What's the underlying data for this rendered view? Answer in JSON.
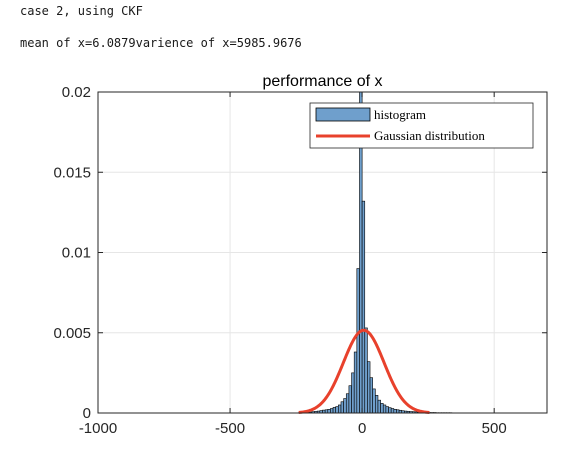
{
  "console": {
    "line1": "case 2, using CKF",
    "line2": "mean of x=6.0879varience of x=5985.9676"
  },
  "colors": {
    "bar_fill": "#6f9fcc",
    "bar_edge": "#000000",
    "curve": "#e8412c",
    "grid": "#e6e6e6",
    "axis": "#262626"
  },
  "chart_data": {
    "type": "bar",
    "title": "performance of x",
    "xlim": [
      -1000,
      700
    ],
    "ylim": [
      0,
      0.02
    ],
    "x_ticks": [
      -1000,
      -500,
      0,
      500
    ],
    "x_tick_labels": [
      "-1000",
      "-500",
      "0",
      "500"
    ],
    "y_ticks": [
      0,
      0.005,
      0.01,
      0.015,
      0.02
    ],
    "y_tick_labels": [
      "0",
      "0.005",
      "0.01",
      "0.015",
      "0.02"
    ],
    "grid": true,
    "legend": {
      "placement": "top-right",
      "entries": [
        "histogram",
        "Gaussian distribution"
      ]
    },
    "histogram": {
      "bin_width": 10,
      "bin_centers": [
        -235,
        -225,
        -215,
        -205,
        -195,
        -185,
        -175,
        -165,
        -155,
        -145,
        -135,
        -125,
        -115,
        -105,
        -95,
        -85,
        -75,
        -65,
        -55,
        -45,
        -35,
        -25,
        -15,
        -5,
        5,
        15,
        25,
        35,
        45,
        55,
        65,
        75,
        85,
        95,
        105,
        115,
        125,
        135,
        145,
        155,
        165,
        175,
        185,
        195,
        205,
        215,
        225,
        235,
        245,
        255,
        265,
        275,
        285,
        295,
        305,
        315,
        325,
        335
      ],
      "densities": [
        3e-05,
        3e-05,
        4e-05,
        5e-05,
        6e-05,
        8e-05,
        0.0001,
        0.00012,
        0.00015,
        0.00018,
        0.0002,
        0.00023,
        0.00028,
        0.00035,
        0.0004,
        0.0005,
        0.0007,
        0.0009,
        0.0012,
        0.0017,
        0.0025,
        0.0038,
        0.009,
        0.0225,
        0.0132,
        0.0053,
        0.0032,
        0.0022,
        0.0015,
        0.0011,
        0.0008,
        0.0006,
        0.0005,
        0.0004,
        0.00033,
        0.00028,
        0.00023,
        0.0002,
        0.00017,
        0.00014,
        0.00012,
        0.0001,
        9e-05,
        8e-05,
        7e-05,
        6e-05,
        5e-05,
        4e-05,
        4e-05,
        3e-05,
        3e-05,
        3e-05,
        2e-05,
        2e-05,
        2e-05,
        2e-05,
        2e-05,
        2e-05
      ]
    },
    "gaussian": {
      "mean": 6.0879,
      "variance": 5985.9676
    }
  }
}
